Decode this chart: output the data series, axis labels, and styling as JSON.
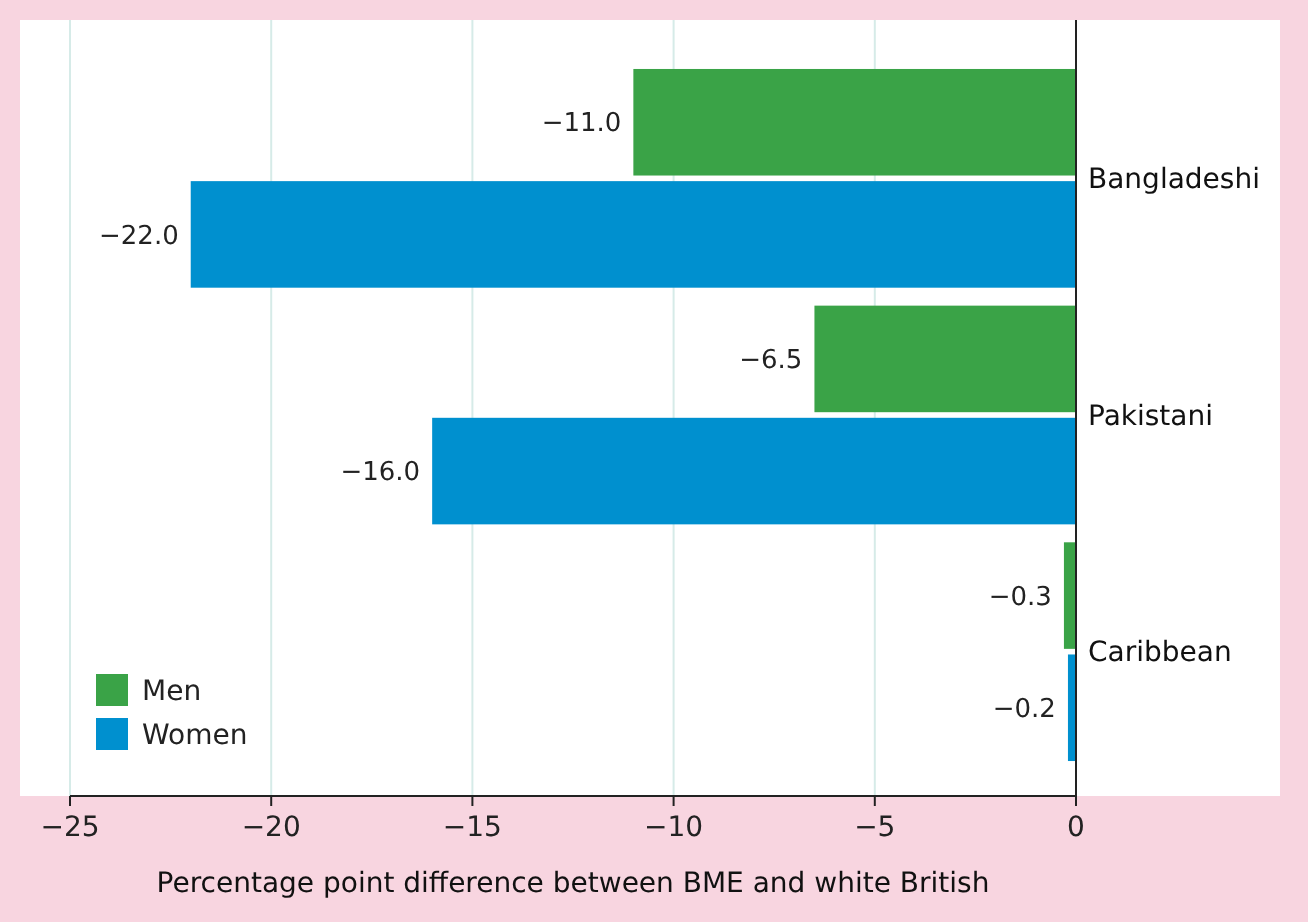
{
  "chart_data": {
    "type": "bar",
    "orientation": "horizontal",
    "xlabel": "Percentage point difference between BME and white British",
    "categories": [
      "Bangladeshi",
      "Pakistani",
      "Caribbean"
    ],
    "series": [
      {
        "name": "Men",
        "color": "#3aa347",
        "values": [
          -11.0,
          -6.5,
          -0.3
        ],
        "value_labels": [
          "−11.0",
          "−6.5",
          "−0.3"
        ]
      },
      {
        "name": "Women",
        "color": "#0090cf",
        "values": [
          -22.0,
          -16.0,
          -0.2
        ],
        "value_labels": [
          "−22.0",
          "−16.0",
          "−0.2"
        ]
      }
    ],
    "xlim": [
      -25,
      0
    ],
    "xticks": [
      {
        "value": -25,
        "label": "−25"
      },
      {
        "value": -20,
        "label": "−20"
      },
      {
        "value": -15,
        "label": "−15"
      },
      {
        "value": -10,
        "label": "−10"
      },
      {
        "value": -5,
        "label": "−5"
      },
      {
        "value": 0,
        "label": "0"
      }
    ],
    "grid": "x",
    "legend": "bottom left"
  }
}
